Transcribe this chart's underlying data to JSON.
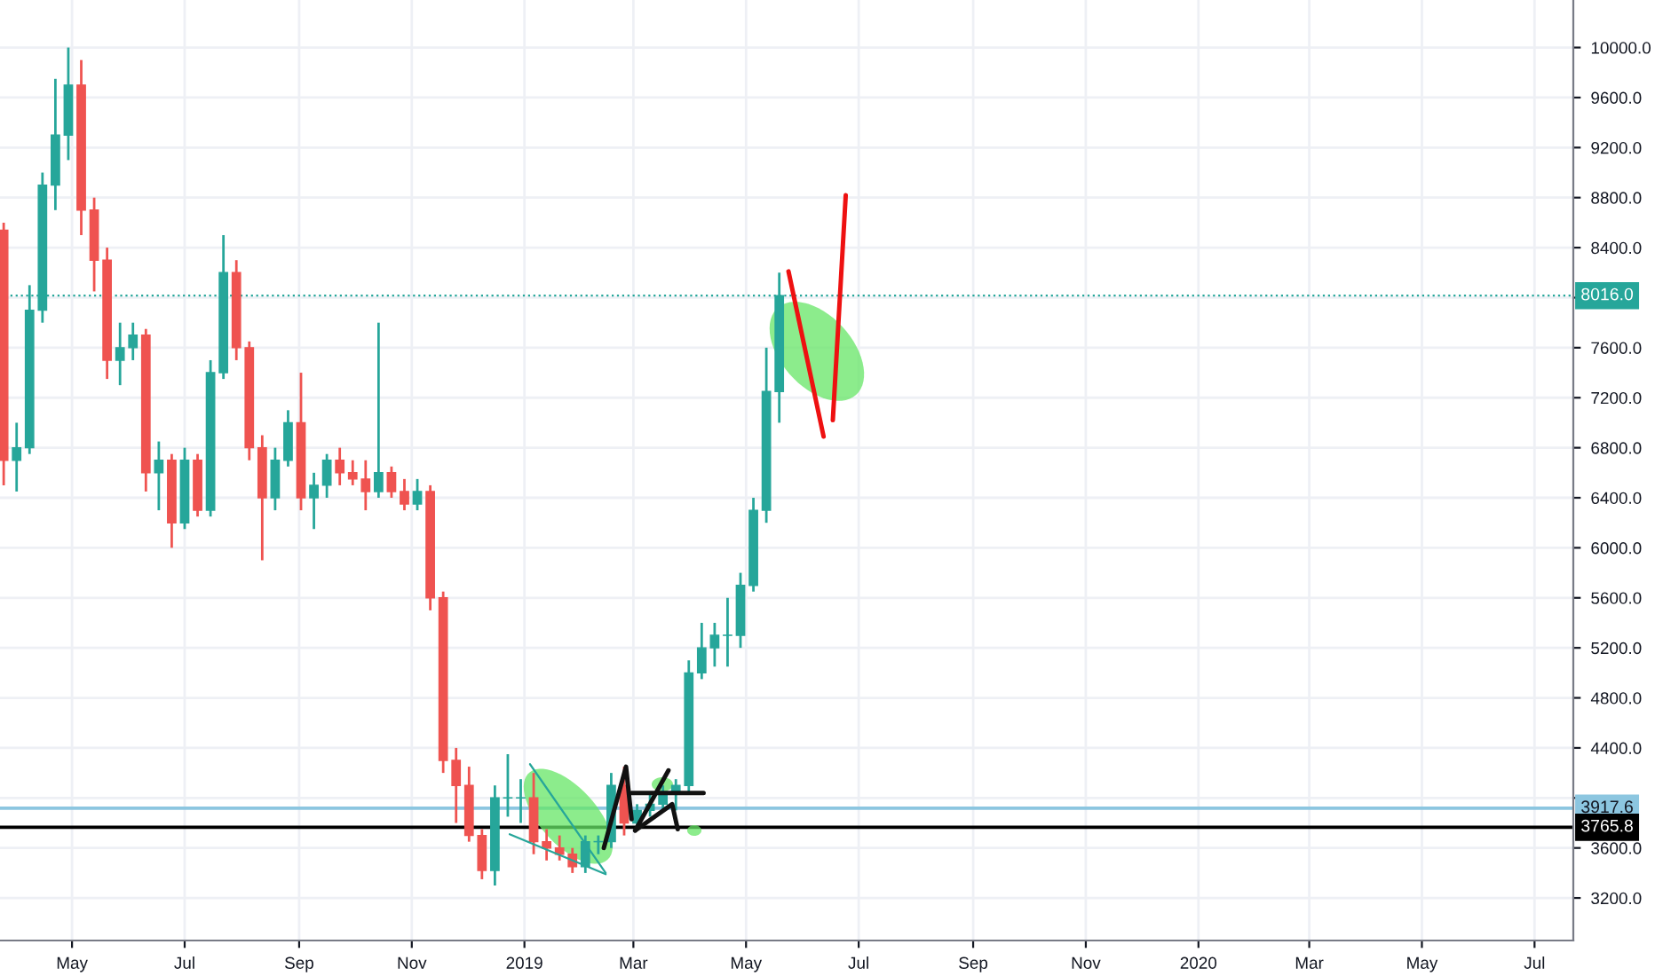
{
  "chart_data": {
    "type": "candlestick",
    "x": [
      "2018-03-25",
      "2018-04-01",
      "2018-04-08",
      "2018-04-15",
      "2018-04-22",
      "2018-04-29",
      "2018-05-06",
      "2018-05-13",
      "2018-05-20",
      "2018-05-27",
      "2018-06-03",
      "2018-06-10",
      "2018-06-17",
      "2018-06-24",
      "2018-07-01",
      "2018-07-08",
      "2018-07-15",
      "2018-07-22",
      "2018-07-29",
      "2018-08-05",
      "2018-08-12",
      "2018-08-19",
      "2018-08-26",
      "2018-09-02",
      "2018-09-09",
      "2018-09-16",
      "2018-09-23",
      "2018-09-30",
      "2018-10-07",
      "2018-10-14",
      "2018-10-21",
      "2018-10-28",
      "2018-11-04",
      "2018-11-11",
      "2018-11-18",
      "2018-11-25",
      "2018-12-02",
      "2018-12-09",
      "2018-12-16",
      "2018-12-23",
      "2018-12-30",
      "2019-01-06",
      "2019-01-13",
      "2019-01-20",
      "2019-01-27",
      "2019-02-03",
      "2019-02-10",
      "2019-02-17",
      "2019-02-24",
      "2019-03-03",
      "2019-03-10",
      "2019-03-17",
      "2019-03-24",
      "2019-03-31",
      "2019-04-07",
      "2019-04-14",
      "2019-04-21",
      "2019-04-28",
      "2019-05-05",
      "2019-05-12",
      "2019-05-19"
    ],
    "ohlc": [
      [
        8540,
        8600,
        6500,
        6700
      ],
      [
        6700,
        7000,
        6450,
        6800
      ],
      [
        6800,
        8100,
        6750,
        7900
      ],
      [
        7900,
        9000,
        7800,
        8900
      ],
      [
        8900,
        9750,
        8700,
        9300
      ],
      [
        9300,
        10000,
        9100,
        9700
      ],
      [
        9700,
        9900,
        8500,
        8700
      ],
      [
        8700,
        8800,
        8050,
        8300
      ],
      [
        8300,
        8400,
        7350,
        7500
      ],
      [
        7500,
        7800,
        7300,
        7600
      ],
      [
        7600,
        7800,
        7500,
        7700
      ],
      [
        7700,
        7750,
        6450,
        6600
      ],
      [
        6600,
        6850,
        6300,
        6700
      ],
      [
        6700,
        6750,
        6000,
        6200
      ],
      [
        6200,
        6800,
        6150,
        6700
      ],
      [
        6700,
        6750,
        6250,
        6300
      ],
      [
        6300,
        7500,
        6250,
        7400
      ],
      [
        7400,
        8500,
        7350,
        8200
      ],
      [
        8200,
        8300,
        7500,
        7600
      ],
      [
        7600,
        7650,
        6700,
        6800
      ],
      [
        6800,
        6900,
        5900,
        6400
      ],
      [
        6400,
        6800,
        6300,
        6700
      ],
      [
        6700,
        7100,
        6650,
        7000
      ],
      [
        7000,
        7400,
        6300,
        6400
      ],
      [
        6400,
        6600,
        6150,
        6500
      ],
      [
        6500,
        6750,
        6400,
        6700
      ],
      [
        6700,
        6800,
        6500,
        6600
      ],
      [
        6600,
        6700,
        6500,
        6550
      ],
      [
        6550,
        6700,
        6300,
        6450
      ],
      [
        6450,
        7800,
        6400,
        6600
      ],
      [
        6600,
        6650,
        6400,
        6450
      ],
      [
        6450,
        6550,
        6300,
        6350
      ],
      [
        6350,
        6550,
        6300,
        6450
      ],
      [
        6450,
        6500,
        5500,
        5600
      ],
      [
        5600,
        5650,
        4200,
        4300
      ],
      [
        4300,
        4400,
        3800,
        4100
      ],
      [
        4100,
        4250,
        3650,
        3700
      ],
      [
        3700,
        3750,
        3350,
        3420
      ],
      [
        3420,
        4100,
        3300,
        4000
      ],
      [
        4000,
        4350,
        3850,
        4000
      ],
      [
        4000,
        4150,
        3800,
        4000
      ],
      [
        4000,
        4200,
        3550,
        3650
      ],
      [
        3650,
        3750,
        3500,
        3600
      ],
      [
        3600,
        3700,
        3500,
        3550
      ],
      [
        3550,
        3600,
        3400,
        3450
      ],
      [
        3450,
        3700,
        3400,
        3650
      ],
      [
        3650,
        3700,
        3550,
        3650
      ],
      [
        3650,
        4200,
        3600,
        4100
      ],
      [
        4100,
        4250,
        3700,
        3800
      ],
      [
        3800,
        3950,
        3750,
        3900
      ],
      [
        3900,
        4050,
        3850,
        3950
      ],
      [
        3950,
        4100,
        3900,
        4050
      ],
      [
        4050,
        4150,
        3900,
        4100
      ],
      [
        4100,
        5100,
        4050,
        5000
      ],
      [
        5000,
        5400,
        4950,
        5200
      ],
      [
        5200,
        5400,
        5050,
        5300
      ],
      [
        5300,
        5600,
        5050,
        5300
      ],
      [
        5300,
        5800,
        5200,
        5700
      ],
      [
        5700,
        6400,
        5650,
        6300
      ],
      [
        6300,
        7600,
        6200,
        7250
      ],
      [
        7250,
        8200,
        7000,
        8016
      ]
    ],
    "colors": [
      "#ef5350",
      "#26a69a",
      "#26a69a",
      "#26a69a",
      "#26a69a",
      "#26a69a",
      "#ef5350",
      "#ef5350",
      "#ef5350",
      "#26a69a",
      "#26a69a",
      "#ef5350",
      "#26a69a",
      "#ef5350",
      "#26a69a",
      "#ef5350",
      "#26a69a",
      "#26a69a",
      "#ef5350",
      "#ef5350",
      "#ef5350",
      "#26a69a",
      "#26a69a",
      "#ef5350",
      "#26a69a",
      "#26a69a",
      "#ef5350",
      "#ef5350",
      "#ef5350",
      "#26a69a",
      "#ef5350",
      "#ef5350",
      "#26a69a",
      "#ef5350",
      "#ef5350",
      "#ef5350",
      "#ef5350",
      "#ef5350",
      "#26a69a",
      "#26a69a",
      "#26a69a",
      "#ef5350",
      "#ef5350",
      "#ef5350",
      "#ef5350",
      "#26a69a",
      "#26a69a",
      "#26a69a",
      "#ef5350",
      "#26a69a",
      "#26a69a",
      "#26a69a",
      "#26a69a",
      "#26a69a",
      "#26a69a",
      "#26a69a",
      "#26a69a",
      "#26a69a",
      "#26a69a",
      "#26a69a",
      "#26a69a"
    ],
    "series": [
      {
        "type": "line",
        "color": "#ee1111",
        "x": [
          "2019-05-24",
          "2019-06-12"
        ],
        "values": [
          8210,
          6890
        ]
      },
      {
        "type": "line",
        "color": "#ee1111",
        "x": [
          "2019-06-17",
          "2019-06-24"
        ],
        "values": [
          7020,
          8820
        ]
      },
      {
        "type": "line",
        "color": "#111111",
        "x": [
          "2019-02-13",
          "2019-02-25",
          "2019-02-28"
        ],
        "values": [
          3600,
          4250,
          3830
        ]
      },
      {
        "type": "line",
        "color": "#111111",
        "x": [
          "2019-02-28",
          "2019-04-08"
        ],
        "values": [
          4040,
          4040
        ]
      },
      {
        "type": "line",
        "color": "#111111",
        "x": [
          "2019-03-02",
          "2019-03-20"
        ],
        "values": [
          3740,
          4220
        ]
      },
      {
        "type": "line",
        "color": "#111111",
        "x": [
          "2019-03-02",
          "2019-03-22",
          "2019-03-25"
        ],
        "values": [
          3740,
          3950,
          3750
        ]
      },
      {
        "type": "line",
        "color": "#26a69a",
        "x": [
          "2019-01-04",
          "2019-02-14"
        ],
        "values": [
          4270,
          3400
        ]
      },
      {
        "type": "line",
        "color": "#26a69a",
        "x": [
          "2018-12-24",
          "2019-02-14"
        ],
        "values": [
          3710,
          3390
        ]
      }
    ],
    "xlim": [
      "2018-03-23",
      "2020-07-22"
    ],
    "xticks": [
      {
        "value": "2018-05-01",
        "label": "May"
      },
      {
        "value": "2018-07-01",
        "label": "Jul"
      },
      {
        "value": "2018-09-01",
        "label": "Sep"
      },
      {
        "value": "2018-11-01",
        "label": "Nov"
      },
      {
        "value": "2019-01-01",
        "label": "2019"
      },
      {
        "value": "2019-03-01",
        "label": "Mar"
      },
      {
        "value": "2019-05-01",
        "label": "May"
      },
      {
        "value": "2019-07-01",
        "label": "Jul"
      },
      {
        "value": "2019-09-01",
        "label": "Sep"
      },
      {
        "value": "2019-11-01",
        "label": "Nov"
      },
      {
        "value": "2020-01-01",
        "label": "2020"
      },
      {
        "value": "2020-03-01",
        "label": "Mar"
      },
      {
        "value": "2020-05-01",
        "label": "May"
      },
      {
        "value": "2020-07-01",
        "label": "Jul"
      }
    ],
    "ylim": [
      2860,
      10380
    ],
    "yticks": [
      {
        "value": 3200,
        "label": "3200.0"
      },
      {
        "value": 3600,
        "label": "3600.0"
      },
      {
        "value": 4000,
        "label": null
      },
      {
        "value": 4400,
        "label": "4400.0"
      },
      {
        "value": 4800,
        "label": "4800.0"
      },
      {
        "value": 5200,
        "label": "5200.0"
      },
      {
        "value": 5600,
        "label": "5600.0"
      },
      {
        "value": 6000,
        "label": "6000.0"
      },
      {
        "value": 6400,
        "label": "6400.0"
      },
      {
        "value": 6800,
        "label": "6800.0"
      },
      {
        "value": 7200,
        "label": "7200.0"
      },
      {
        "value": 7600,
        "label": "7600.0"
      },
      {
        "value": 8000,
        "label": null
      },
      {
        "value": 8400,
        "label": "8400.0"
      },
      {
        "value": 8800,
        "label": "8800.0"
      },
      {
        "value": 9200,
        "label": "9200.0"
      },
      {
        "value": 9600,
        "label": "9600.0"
      },
      {
        "value": 10000,
        "label": "10000.0"
      }
    ],
    "ref_lines": [
      {
        "axis": "y",
        "value": 8016,
        "label": "8016.0",
        "color": "#26a69a",
        "line_style": "dotted"
      },
      {
        "axis": "y",
        "value": 3917.6,
        "label": "3917.6",
        "color": "#8cc6e0",
        "line_style": "solid"
      },
      {
        "axis": "y",
        "value": 3765.8,
        "label": "3765.8",
        "color": "#000000",
        "line_style": "solid"
      }
    ],
    "grid": true,
    "legend": false
  }
}
